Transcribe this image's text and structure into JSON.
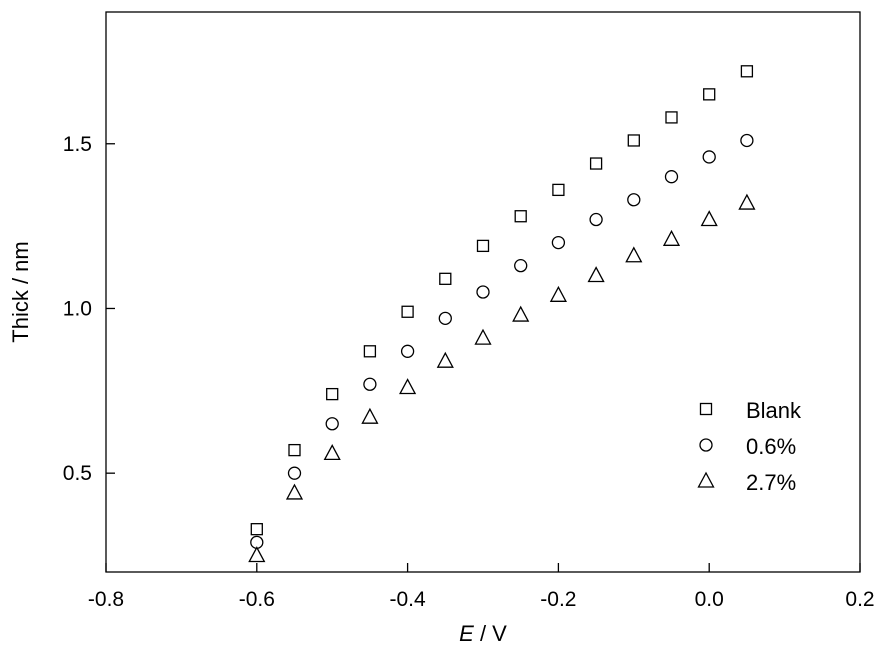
{
  "chart_data": {
    "type": "scatter",
    "title": "",
    "xlabel": {
      "italic": "E",
      "rest": " / V"
    },
    "ylabel": "Thick / nm",
    "xlim": [
      -0.8,
      0.2
    ],
    "ylim": [
      0.2,
      1.9
    ],
    "xticks": [
      -0.8,
      -0.6,
      -0.4,
      -0.2,
      0.0,
      0.2
    ],
    "xtick_labels": [
      "-0.8",
      "-0.6",
      "-0.4",
      "-0.2",
      "0.0",
      "0.2"
    ],
    "yticks": [
      0.5,
      1.0,
      1.5
    ],
    "ytick_labels": [
      "0.5",
      "1.0",
      "1.5"
    ],
    "grid": false,
    "legend_position": "bottom-right",
    "series": [
      {
        "name": "Blank",
        "marker": "square",
        "x": [
          -0.6,
          -0.55,
          -0.5,
          -0.45,
          -0.4,
          -0.35,
          -0.3,
          -0.25,
          -0.2,
          -0.15,
          -0.1,
          -0.05,
          0.0,
          0.05
        ],
        "y": [
          0.33,
          0.57,
          0.74,
          0.87,
          0.99,
          1.09,
          1.19,
          1.28,
          1.36,
          1.44,
          1.51,
          1.58,
          1.65,
          1.72
        ]
      },
      {
        "name": "0.6%",
        "marker": "circle",
        "x": [
          -0.6,
          -0.55,
          -0.5,
          -0.45,
          -0.4,
          -0.35,
          -0.3,
          -0.25,
          -0.2,
          -0.15,
          -0.1,
          -0.05,
          0.0,
          0.05
        ],
        "y": [
          0.29,
          0.5,
          0.65,
          0.77,
          0.87,
          0.97,
          1.05,
          1.13,
          1.2,
          1.27,
          1.33,
          1.4,
          1.46,
          1.51
        ]
      },
      {
        "name": "2.7%",
        "marker": "triangle",
        "x": [
          -0.6,
          -0.55,
          -0.5,
          -0.45,
          -0.4,
          -0.35,
          -0.3,
          -0.25,
          -0.2,
          -0.15,
          -0.1,
          -0.05,
          0.0,
          0.05
        ],
        "y": [
          0.25,
          0.44,
          0.56,
          0.67,
          0.76,
          0.84,
          0.91,
          0.98,
          1.04,
          1.1,
          1.16,
          1.21,
          1.27,
          1.32
        ]
      }
    ]
  }
}
